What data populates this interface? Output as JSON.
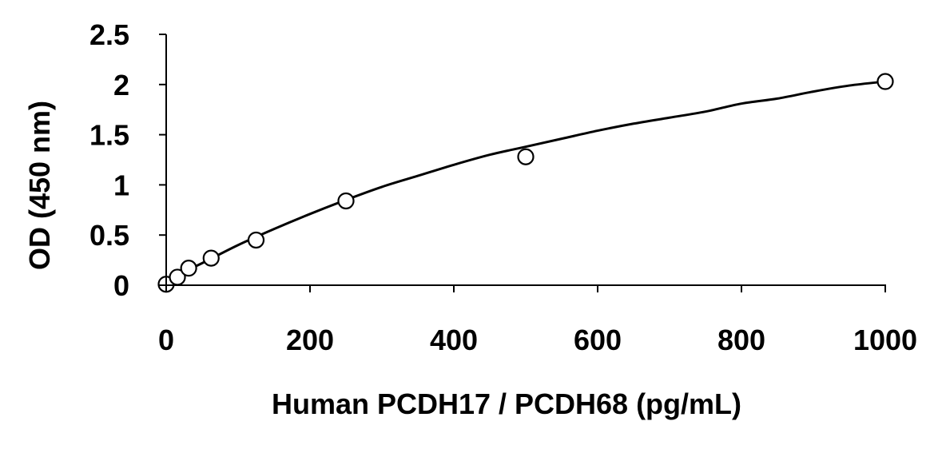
{
  "chart_data": {
    "type": "scatter",
    "title": "",
    "xlabel": "Human PCDH17 / PCDH68 (pg/mL)",
    "ylabel": "OD (450 nm)",
    "xlim": [
      0,
      1000
    ],
    "ylim": [
      0,
      2.5
    ],
    "x_ticks": [
      0,
      200,
      400,
      600,
      800,
      1000
    ],
    "y_ticks": [
      0,
      0.5,
      1,
      1.5,
      2,
      2.5
    ],
    "x_tick_labels": [
      "0",
      "200",
      "400",
      "600",
      "800",
      "1000"
    ],
    "y_tick_labels": [
      "0",
      "0.5",
      "1",
      "1.5",
      "2",
      "2.5"
    ],
    "grid": false,
    "legend": "none",
    "series": [
      {
        "marker": "open-circle",
        "x": [
          0,
          15.6,
          31.25,
          62.5,
          125,
          250,
          500,
          1000
        ],
        "y": [
          0.01,
          0.08,
          0.17,
          0.27,
          0.45,
          0.84,
          1.28,
          2.03
        ]
      }
    ],
    "fit_curve": {
      "x": [
        0,
        50,
        100,
        150,
        200,
        250,
        300,
        350,
        400,
        450,
        500,
        550,
        600,
        650,
        700,
        750,
        800,
        850,
        900,
        950,
        1000
      ],
      "y": [
        0.05,
        0.22,
        0.4,
        0.56,
        0.71,
        0.85,
        0.98,
        1.09,
        1.2,
        1.3,
        1.38,
        1.46,
        1.54,
        1.61,
        1.67,
        1.73,
        1.81,
        1.86,
        1.93,
        1.99,
        2.03
      ]
    },
    "colors": {
      "axis": "#000000",
      "marker_stroke": "#000000",
      "marker_fill": "#ffffff",
      "curve": "#000000"
    }
  }
}
